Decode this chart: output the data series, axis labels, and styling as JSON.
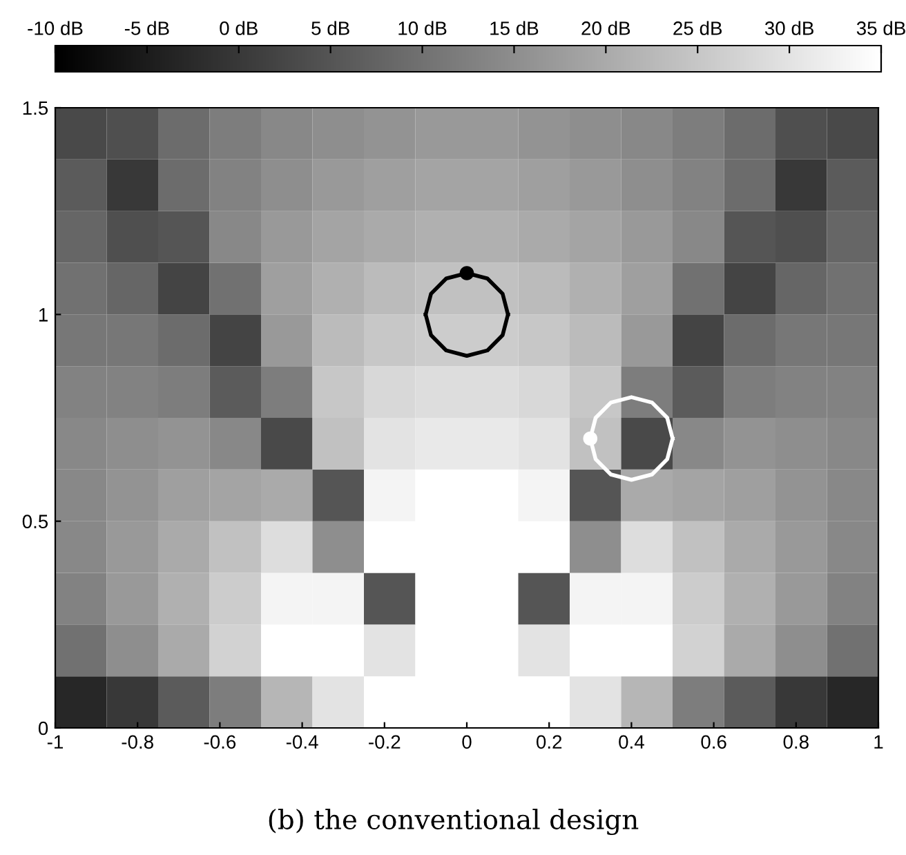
{
  "chart_data": {
    "type": "heatmap",
    "x": [
      -0.9375,
      -0.8125,
      -0.6875,
      -0.5625,
      -0.4375,
      -0.3125,
      -0.1875,
      -0.0625,
      0.0625,
      0.1875,
      0.3125,
      0.4375,
      0.5625,
      0.6875,
      0.8125,
      0.9375
    ],
    "y": [
      1.4375,
      1.3125,
      1.1875,
      1.0625,
      0.9375,
      0.8125,
      0.6875,
      0.5625,
      0.4375,
      0.3125,
      0.1875,
      0.0625
    ],
    "cells": [
      [
        3,
        4,
        9,
        12,
        14,
        15,
        16,
        17,
        17,
        16,
        15,
        14,
        12,
        9,
        4,
        3
      ],
      [
        6,
        0,
        9,
        13,
        15,
        17,
        18,
        19,
        19,
        18,
        17,
        15,
        13,
        9,
        0,
        6
      ],
      [
        8,
        4,
        5,
        14,
        17,
        19,
        20,
        21,
        21,
        20,
        19,
        17,
        14,
        5,
        4,
        8
      ],
      [
        10,
        8,
        2,
        10,
        18,
        21,
        23,
        24,
        24,
        23,
        21,
        18,
        10,
        2,
        8,
        10
      ],
      [
        11,
        11,
        9,
        2,
        17,
        23,
        25,
        26,
        26,
        25,
        23,
        17,
        2,
        9,
        11,
        11
      ],
      [
        13,
        13,
        12,
        6,
        12,
        25,
        28,
        29,
        29,
        28,
        25,
        12,
        6,
        12,
        13,
        13
      ],
      [
        14,
        15,
        16,
        14,
        3,
        24,
        30,
        31,
        31,
        30,
        24,
        3,
        14,
        16,
        15,
        14
      ],
      [
        14,
        16,
        18,
        19,
        20,
        5,
        33,
        35,
        35,
        33,
        5,
        20,
        19,
        18,
        16,
        14
      ],
      [
        14,
        17,
        20,
        24,
        29,
        15,
        35,
        35,
        35,
        35,
        15,
        29,
        24,
        20,
        17,
        14
      ],
      [
        13,
        17,
        21,
        26,
        33,
        33,
        5,
        35,
        35,
        5,
        33,
        33,
        26,
        21,
        17,
        13
      ],
      [
        10,
        15,
        20,
        27,
        35,
        35,
        30,
        35,
        35,
        30,
        35,
        35,
        27,
        20,
        15,
        10
      ],
      [
        -3,
        0,
        6,
        12,
        22,
        30,
        35,
        35,
        35,
        35,
        30,
        22,
        12,
        6,
        0,
        -3
      ]
    ],
    "clim": [
      -10,
      35
    ],
    "cticks": [
      {
        "value": -10,
        "label": "-10 dB"
      },
      {
        "value": -5,
        "label": "-5 dB"
      },
      {
        "value": 0,
        "label": "0 dB"
      },
      {
        "value": 5,
        "label": "5 dB"
      },
      {
        "value": 10,
        "label": "10 dB"
      },
      {
        "value": 15,
        "label": "15 dB"
      },
      {
        "value": 20,
        "label": "20 dB"
      },
      {
        "value": 25,
        "label": "25 dB"
      },
      {
        "value": 30,
        "label": "30 dB"
      },
      {
        "value": 35,
        "label": "35 dB"
      }
    ],
    "xlim": [
      -1,
      1
    ],
    "ylim": [
      0,
      1.5
    ],
    "xticks": [
      -1,
      -0.8,
      -0.6,
      -0.4,
      -0.2,
      0,
      0.2,
      0.4,
      0.6,
      0.8,
      1
    ],
    "yticks": [
      0,
      0.5,
      1,
      1.5
    ],
    "series": [
      {
        "type": "line",
        "color": "#000000",
        "x": [
          -0.1,
          -0.087,
          -0.05,
          0,
          0.05,
          0.087,
          0.1
        ],
        "values": [
          1,
          1.05,
          1.087,
          1.1,
          1.087,
          1.05,
          1
        ]
      },
      {
        "type": "line",
        "color": "#000000",
        "x": [
          -0.1,
          -0.087,
          -0.05,
          0,
          0.05,
          0.087,
          0.1
        ],
        "values": [
          1,
          0.95,
          0.913,
          0.9,
          0.913,
          0.95,
          1
        ]
      },
      {
        "type": "scatter",
        "color": "#000000",
        "marker": "circle",
        "x": [
          0
        ],
        "values": [
          1.1
        ]
      },
      {
        "type": "line",
        "color": "#ffffff",
        "x": [
          0.3,
          0.313,
          0.35,
          0.4,
          0.45,
          0.487,
          0.5
        ],
        "values": [
          0.7,
          0.75,
          0.787,
          0.8,
          0.787,
          0.75,
          0.7
        ]
      },
      {
        "type": "line",
        "color": "#ffffff",
        "x": [
          0.3,
          0.313,
          0.35,
          0.4,
          0.45,
          0.487,
          0.5
        ],
        "values": [
          0.7,
          0.65,
          0.613,
          0.6,
          0.613,
          0.65,
          0.7
        ]
      },
      {
        "type": "scatter",
        "color": "#ffffff",
        "marker": "circle",
        "x": [
          0.3
        ],
        "values": [
          0.7
        ]
      }
    ],
    "annotations": [
      "(b) the conventional design"
    ]
  }
}
